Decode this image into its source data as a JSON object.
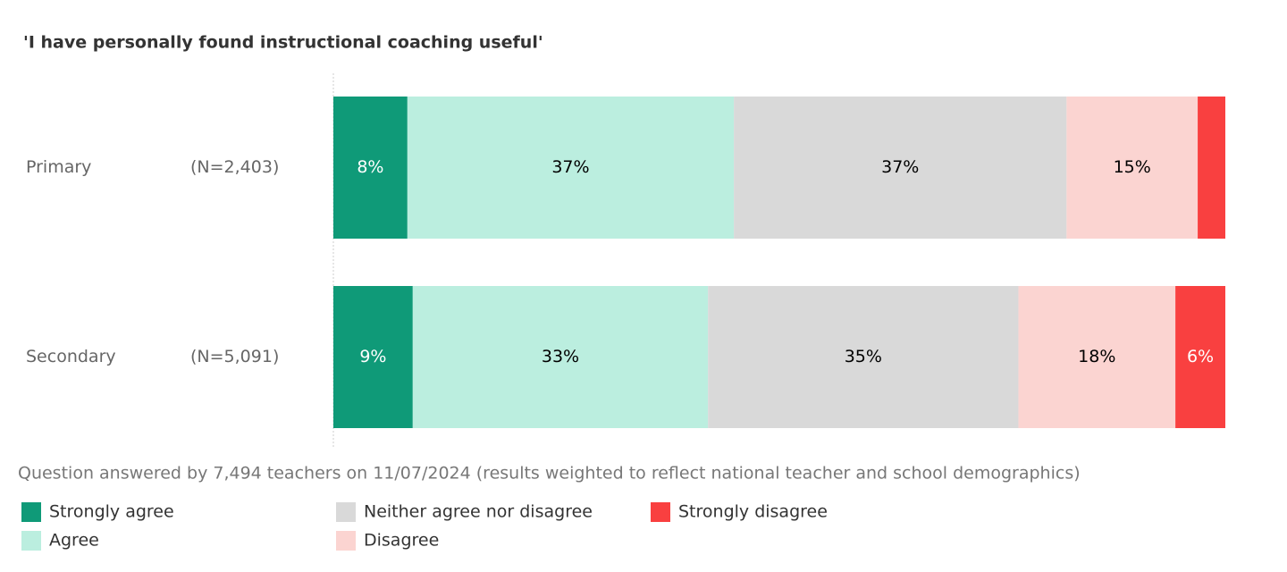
{
  "chart_data": {
    "type": "stacked-barh",
    "title": "'I have personally found instructional coaching useful'",
    "categories": [
      "Primary",
      "Secondary"
    ],
    "sample_sizes": [
      "(N=2,403)",
      "(N=5,091)"
    ],
    "xlim": [
      0,
      100
    ],
    "series": [
      {
        "name": "Strongly agree",
        "color": "#0f9a78",
        "values": [
          8.3,
          8.9
        ],
        "value_labels": [
          "8%",
          "9%"
        ]
      },
      {
        "name": "Agree",
        "color": "#bbeedf",
        "values": [
          36.6,
          33.1
        ],
        "value_labels": [
          "37%",
          "33%"
        ]
      },
      {
        "name": "Neither agree nor disagree",
        "color": "#d9d9d9",
        "values": [
          37.3,
          34.8
        ],
        "value_labels": [
          "37%",
          "35%"
        ]
      },
      {
        "name": "Disagree",
        "color": "#fbd4d1",
        "values": [
          14.7,
          17.6
        ],
        "value_labels": [
          "15%",
          "18%"
        ]
      },
      {
        "name": "Strongly disagree",
        "color": "#f94040",
        "values": [
          3.1,
          5.6
        ],
        "value_labels": [
          null,
          "6%"
        ]
      }
    ],
    "note": "Question answered by 7,494 teachers on 11/07/2024 (results weighted to reflect national teacher and school demographics)"
  }
}
